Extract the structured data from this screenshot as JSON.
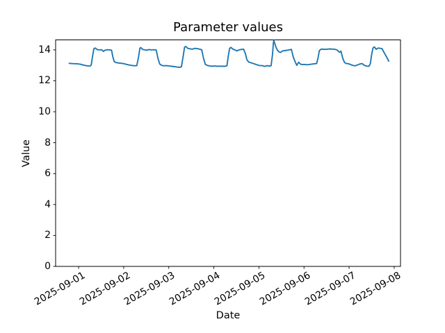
{
  "colors": {
    "line": "#1f77b4",
    "text": "#000000",
    "background": "#ffffff"
  },
  "chart_data": {
    "type": "line",
    "title": "Parameter values",
    "xlabel": "Date",
    "ylabel": "Value",
    "grid": false,
    "legend": "none",
    "line_color": "#1f77b4",
    "x_tick_labels": [
      "2025-09-01",
      "2025-09-02",
      "2025-09-03",
      "2025-09-04",
      "2025-09-05",
      "2025-09-06",
      "2025-09-07",
      "2025-09-08"
    ],
    "x_tick_days": [
      0,
      1,
      2,
      3,
      4,
      5,
      6,
      7
    ],
    "y_ticks": [
      0,
      2,
      4,
      6,
      8,
      10,
      12,
      14
    ],
    "xlim_days": [
      -0.51,
      7.14
    ],
    "ylim": [
      0,
      14.645
    ],
    "x_unit": "days since 2025-09-01 00:00",
    "series": [
      {
        "points": [
          [
            -0.21,
            13.13
          ],
          [
            -0.13,
            13.11
          ],
          [
            -0.04,
            13.1
          ],
          [
            0.04,
            13.07
          ],
          [
            0.1,
            13.02
          ],
          [
            0.16,
            12.98
          ],
          [
            0.21,
            12.96
          ],
          [
            0.25,
            12.95
          ],
          [
            0.28,
            13.02
          ],
          [
            0.31,
            13.62
          ],
          [
            0.34,
            14.08
          ],
          [
            0.37,
            14.12
          ],
          [
            0.41,
            14.02
          ],
          [
            0.46,
            14.0
          ],
          [
            0.51,
            14.01
          ],
          [
            0.55,
            13.9
          ],
          [
            0.58,
            13.97
          ],
          [
            0.63,
            14.01
          ],
          [
            0.69,
            14.0
          ],
          [
            0.73,
            13.98
          ],
          [
            0.76,
            13.55
          ],
          [
            0.79,
            13.24
          ],
          [
            0.83,
            13.18
          ],
          [
            0.89,
            13.15
          ],
          [
            0.95,
            13.13
          ],
          [
            1.0,
            13.11
          ],
          [
            1.06,
            13.06
          ],
          [
            1.12,
            13.02
          ],
          [
            1.19,
            12.99
          ],
          [
            1.25,
            12.97
          ],
          [
            1.29,
            12.98
          ],
          [
            1.33,
            13.55
          ],
          [
            1.36,
            14.1
          ],
          [
            1.38,
            14.15
          ],
          [
            1.42,
            14.03
          ],
          [
            1.47,
            14.0
          ],
          [
            1.52,
            13.98
          ],
          [
            1.56,
            14.02
          ],
          [
            1.61,
            14.0
          ],
          [
            1.67,
            14.01
          ],
          [
            1.72,
            13.99
          ],
          [
            1.76,
            13.45
          ],
          [
            1.8,
            13.08
          ],
          [
            1.84,
            13.0
          ],
          [
            1.89,
            12.97
          ],
          [
            1.95,
            12.98
          ],
          [
            2.0,
            12.96
          ],
          [
            2.06,
            12.94
          ],
          [
            2.12,
            12.92
          ],
          [
            2.18,
            12.89
          ],
          [
            2.24,
            12.87
          ],
          [
            2.28,
            12.91
          ],
          [
            2.32,
            13.6
          ],
          [
            2.35,
            14.17
          ],
          [
            2.38,
            14.22
          ],
          [
            2.42,
            14.1
          ],
          [
            2.47,
            14.07
          ],
          [
            2.52,
            14.04
          ],
          [
            2.57,
            14.1
          ],
          [
            2.63,
            14.08
          ],
          [
            2.68,
            14.05
          ],
          [
            2.73,
            14.01
          ],
          [
            2.77,
            13.45
          ],
          [
            2.81,
            13.06
          ],
          [
            2.86,
            12.99
          ],
          [
            2.91,
            12.96
          ],
          [
            2.96,
            12.94
          ],
          [
            3.01,
            12.96
          ],
          [
            3.07,
            12.94
          ],
          [
            3.13,
            12.95
          ],
          [
            3.19,
            12.94
          ],
          [
            3.25,
            12.94
          ],
          [
            3.29,
            12.97
          ],
          [
            3.32,
            13.6
          ],
          [
            3.35,
            14.1
          ],
          [
            3.38,
            14.16
          ],
          [
            3.42,
            14.05
          ],
          [
            3.46,
            14.01
          ],
          [
            3.51,
            13.93
          ],
          [
            3.56,
            14.0
          ],
          [
            3.61,
            14.03
          ],
          [
            3.66,
            14.04
          ],
          [
            3.7,
            13.75
          ],
          [
            3.73,
            13.38
          ],
          [
            3.77,
            13.22
          ],
          [
            3.83,
            13.16
          ],
          [
            3.89,
            13.1
          ],
          [
            3.95,
            13.04
          ],
          [
            4.01,
            12.99
          ],
          [
            4.07,
            12.98
          ],
          [
            4.13,
            12.93
          ],
          [
            4.19,
            12.98
          ],
          [
            4.24,
            12.95
          ],
          [
            4.27,
            12.98
          ],
          [
            4.3,
            13.7
          ],
          [
            4.32,
            14.45
          ],
          [
            4.33,
            14.61
          ],
          [
            4.35,
            14.42
          ],
          [
            4.38,
            14.15
          ],
          [
            4.41,
            13.98
          ],
          [
            4.45,
            13.86
          ],
          [
            4.48,
            13.83
          ],
          [
            4.52,
            13.93
          ],
          [
            4.57,
            13.95
          ],
          [
            4.62,
            13.97
          ],
          [
            4.67,
            14.0
          ],
          [
            4.72,
            14.03
          ],
          [
            4.76,
            13.55
          ],
          [
            4.8,
            13.25
          ],
          [
            4.84,
            13.0
          ],
          [
            4.88,
            13.2
          ],
          [
            4.92,
            13.08
          ],
          [
            4.96,
            13.05
          ],
          [
            5.01,
            13.06
          ],
          [
            5.06,
            13.04
          ],
          [
            5.11,
            13.05
          ],
          [
            5.17,
            13.08
          ],
          [
            5.23,
            13.1
          ],
          [
            5.28,
            13.12
          ],
          [
            5.31,
            13.45
          ],
          [
            5.34,
            13.95
          ],
          [
            5.38,
            14.05
          ],
          [
            5.43,
            14.04
          ],
          [
            5.48,
            14.03
          ],
          [
            5.53,
            14.05
          ],
          [
            5.58,
            14.06
          ],
          [
            5.63,
            14.05
          ],
          [
            5.68,
            14.04
          ],
          [
            5.73,
            14.0
          ],
          [
            5.76,
            13.92
          ],
          [
            5.79,
            13.84
          ],
          [
            5.82,
            13.92
          ],
          [
            5.86,
            13.45
          ],
          [
            5.9,
            13.18
          ],
          [
            5.94,
            13.12
          ],
          [
            5.99,
            13.1
          ],
          [
            6.04,
            13.04
          ],
          [
            6.09,
            12.99
          ],
          [
            6.14,
            12.97
          ],
          [
            6.19,
            13.03
          ],
          [
            6.24,
            13.09
          ],
          [
            6.29,
            13.11
          ],
          [
            6.34,
            13.0
          ],
          [
            6.39,
            12.95
          ],
          [
            6.44,
            12.94
          ],
          [
            6.47,
            13.1
          ],
          [
            6.5,
            13.7
          ],
          [
            6.53,
            14.12
          ],
          [
            6.56,
            14.19
          ],
          [
            6.6,
            14.04
          ],
          [
            6.65,
            14.12
          ],
          [
            6.69,
            14.1
          ],
          [
            6.73,
            14.08
          ],
          [
            6.78,
            13.8
          ],
          [
            6.83,
            13.55
          ],
          [
            6.88,
            13.27
          ]
        ]
      }
    ]
  }
}
